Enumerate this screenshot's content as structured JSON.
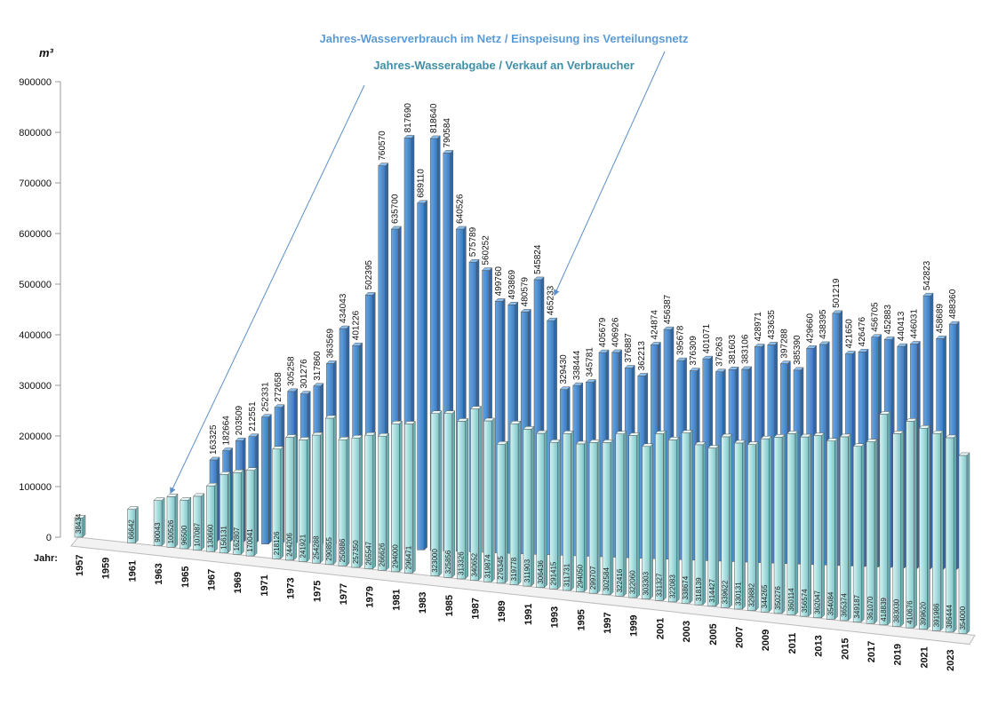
{
  "chart_data": {
    "type": "bar",
    "title_series1": "Jahres-Wasserverbrauch  im Netz / Einspeisung  ins Verteilungsnetz",
    "title_series2": "Jahres-Wasserabgabe / Verkauf an Verbraucher",
    "ylabel": "m³",
    "xlabel": "Jahr:",
    "ylim": [
      0,
      900000
    ],
    "yticks": [
      "0",
      "100000",
      "200000",
      "300000",
      "400000",
      "500000",
      "600000",
      "700000",
      "800000",
      "900000"
    ],
    "categories": [
      "1957",
      "1958",
      "1959",
      "1960",
      "1961",
      "1962",
      "1963",
      "1964",
      "1965",
      "1966",
      "1967",
      "1968",
      "1969",
      "1970",
      "1971",
      "1972",
      "1973",
      "1974",
      "1975",
      "1976",
      "1977",
      "1978",
      "1979",
      "1980",
      "1981",
      "1982",
      "1983",
      "1984",
      "1985",
      "1986",
      "1987",
      "1988",
      "1989",
      "1990",
      "1991",
      "1992",
      "1993",
      "1994",
      "1995",
      "1996",
      "1997",
      "1998",
      "1999",
      "2000",
      "2001",
      "2002",
      "2003",
      "2004",
      "2005",
      "2006",
      "2007",
      "2008",
      "2009",
      "2010",
      "2011",
      "2012",
      "2013",
      "2014",
      "2015",
      "2016",
      "2017",
      "2018",
      "2019",
      "2020",
      "2021",
      "2022",
      "2023",
      "2024"
    ],
    "xtick_labels": [
      "1957",
      "1959",
      "1961",
      "1963",
      "1965",
      "1967",
      "1969",
      "1971",
      "1973",
      "1975",
      "1977",
      "1979",
      "1981",
      "1983",
      "1985",
      "1987",
      "1989",
      "1991",
      "1993",
      "1995",
      "1997",
      "1999",
      "2001",
      "2003",
      "2005",
      "2007",
      "2009",
      "2011",
      "2013",
      "2015",
      "2017",
      "2019",
      "2021",
      "2023"
    ],
    "series": [
      {
        "name": "Jahres-Wasserverbrauch  im Netz / Einspeisung  ins Verteilungsnetz",
        "color": "#5b9bd5",
        "values": [
          null,
          null,
          null,
          null,
          null,
          null,
          null,
          null,
          null,
          null,
          163325,
          182664,
          203509,
          212551,
          252331,
          272658,
          305258,
          301276,
          317860,
          363569,
          434043,
          401226,
          502395,
          760570,
          635700,
          817690,
          689110,
          818640,
          790584,
          640526,
          575789,
          560252,
          499760,
          493869,
          480579,
          545824,
          465233,
          329430,
          338444,
          345781,
          405679,
          406926,
          376887,
          362213,
          424874,
          456387,
          395678,
          376309,
          401071,
          376263,
          381603,
          383106,
          428971,
          433635,
          397288,
          385390,
          429660,
          438395,
          501219,
          421650,
          426476,
          456705,
          452883,
          440413,
          446031,
          542823,
          458689,
          488360
        ]
      },
      {
        "name": "Jahres-Wasserabgabe / Verkauf an Verbraucher",
        "color": "#bfeaea",
        "values": [
          38434,
          null,
          null,
          null,
          66642,
          null,
          90043,
          100526,
          96500,
          107087,
          130660,
          156131,
          162807,
          170041,
          null,
          218126,
          244206,
          241921,
          254288,
          290855,
          250886,
          257350,
          265547,
          266626,
          294000,
          296471,
          null,
          323000,
          325856,
          313326,
          340652,
          319874,
          276345,
          319778,
          311903,
          306436,
          291415,
          311731,
          294050,
          299707,
          302584,
          322416,
          322060,
          303303,
          331327,
          322083,
          338674,
          318139,
          314427,
          339622,
          330131,
          329882,
          344265,
          350276,
          360114,
          356574,
          362047,
          354084,
          365374,
          349187,
          361070,
          418839,
          383030,
          410676,
          399620,
          391986,
          386444,
          354000
        ]
      }
    ]
  }
}
